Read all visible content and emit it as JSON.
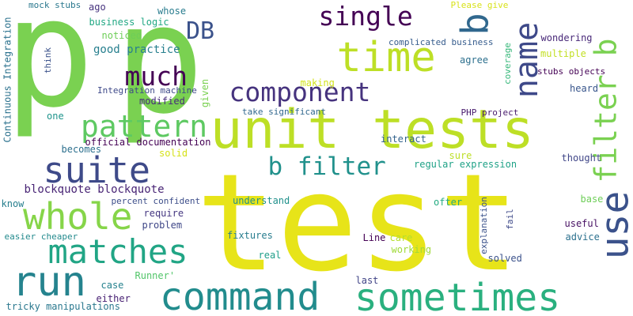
{
  "words": [
    {
      "id": "p-left",
      "text": "p",
      "color": "#7ad151"
    },
    {
      "id": "p-right",
      "text": "p",
      "color": "#7ad151"
    },
    {
      "id": "test",
      "text": "test",
      "color": "#e7e419"
    },
    {
      "id": "unit-tests",
      "text": "unit tests",
      "color": "#bddf26"
    },
    {
      "id": "command",
      "text": "command",
      "color": "#228c8d"
    },
    {
      "id": "sometimes",
      "text": "sometimes",
      "color": "#2ab07f"
    },
    {
      "id": "run",
      "text": "run",
      "color": "#25838e"
    },
    {
      "id": "matches",
      "text": "matches",
      "color": "#21a585"
    },
    {
      "id": "whole",
      "text": "whole",
      "color": "#86d549"
    },
    {
      "id": "suite",
      "text": "suite",
      "color": "#3e4a89"
    },
    {
      "id": "pattern",
      "text": "pattern",
      "color": "#5ec962"
    },
    {
      "id": "much",
      "text": "much",
      "color": "#440154"
    },
    {
      "id": "component",
      "text": "component",
      "color": "#46337e"
    },
    {
      "id": "time",
      "text": "time",
      "color": "#bddf26"
    },
    {
      "id": "single",
      "text": "single",
      "color": "#440154"
    },
    {
      "id": "db",
      "text": "DB",
      "color": "#3b528b"
    },
    {
      "id": "name",
      "text": "name",
      "color": "#3e4989"
    },
    {
      "id": "b",
      "text": "b",
      "color": "#31688e"
    },
    {
      "id": "filter-b",
      "text": "filter b",
      "color": "#7ad151"
    },
    {
      "id": "use",
      "text": "use",
      "color": "#3b528b"
    },
    {
      "id": "b-filter",
      "text": "b filter",
      "color": "#21918c"
    },
    {
      "id": "blockquote",
      "text": "blockquote blockquote",
      "color": "#482475"
    },
    {
      "id": "good-practice",
      "text": "good practice",
      "color": "#277f8e"
    },
    {
      "id": "noticed",
      "text": "noticed",
      "color": "#6ece58"
    },
    {
      "id": "business-logic",
      "text": "business logic",
      "color": "#22a884"
    },
    {
      "id": "ago",
      "text": "ago",
      "color": "#46327e"
    },
    {
      "id": "whose",
      "text": "whose",
      "color": "#287c8e"
    },
    {
      "id": "mock-stubs",
      "text": "mock stubs",
      "color": "#2a788e"
    },
    {
      "id": "please-give",
      "text": "Please give",
      "color": "#d8e219"
    },
    {
      "id": "complicated-business",
      "text": "complicated business",
      "color": "#365c8d"
    },
    {
      "id": "wondering",
      "text": "wondering",
      "color": "#482878"
    },
    {
      "id": "multiple",
      "text": "multiple",
      "color": "#c2df23"
    },
    {
      "id": "coverage",
      "text": "coverage",
      "color": "#35b779"
    },
    {
      "id": "agree",
      "text": "agree",
      "color": "#2d708e"
    },
    {
      "id": "stubs-objects",
      "text": "stubs objects",
      "color": "#440154"
    },
    {
      "id": "making",
      "text": "making",
      "color": "#d2e21b"
    },
    {
      "id": "heard",
      "text": "heard",
      "color": "#39568c"
    },
    {
      "id": "integration-machine",
      "text": "Integration machine",
      "color": "#3e4989"
    },
    {
      "id": "modified",
      "text": "modified",
      "color": "#472d7b"
    },
    {
      "id": "given",
      "text": "given",
      "color": "#7ad151"
    },
    {
      "id": "take-significant",
      "text": "take significant",
      "color": "#31688e"
    },
    {
      "id": "php-project",
      "text": "PHP project",
      "color": "#481b6d"
    },
    {
      "id": "one",
      "text": "one",
      "color": "#1f948c"
    },
    {
      "id": "think",
      "text": "think",
      "color": "#3b528b"
    },
    {
      "id": "continuous-integration",
      "text": "Continuous Integration",
      "color": "#2c728e"
    },
    {
      "id": "official-documentation",
      "text": "official documentation",
      "color": "#440154"
    },
    {
      "id": "becomes",
      "text": "becomes",
      "color": "#2d708e"
    },
    {
      "id": "solid",
      "text": "solid",
      "color": "#d5e21a"
    },
    {
      "id": "interact",
      "text": "interact",
      "color": "#33638d"
    },
    {
      "id": "sure",
      "text": "sure",
      "color": "#bddf26"
    },
    {
      "id": "thought",
      "text": "thought",
      "color": "#404688"
    },
    {
      "id": "regular-expression",
      "text": "regular expression",
      "color": "#1fa287"
    },
    {
      "id": "understand",
      "text": "understand",
      "color": "#21918c"
    },
    {
      "id": "percent-confident",
      "text": "percent confident",
      "color": "#3d4e8a"
    },
    {
      "id": "know",
      "text": "know",
      "color": "#277f8e"
    },
    {
      "id": "require",
      "text": "require",
      "color": "#453781"
    },
    {
      "id": "problem",
      "text": "problem",
      "color": "#3f4788"
    },
    {
      "id": "easier-cheaper",
      "text": "easier cheaper",
      "color": "#238a8d"
    },
    {
      "id": "ofter",
      "text": "ofter",
      "color": "#25ab82"
    },
    {
      "id": "base",
      "text": "base",
      "color": "#6ece58"
    },
    {
      "id": "fail",
      "text": "fail",
      "color": "#3e4989"
    },
    {
      "id": "explanation",
      "text": "explanation",
      "color": "#3b528b"
    },
    {
      "id": "useful",
      "text": "useful",
      "color": "#471063"
    },
    {
      "id": "advice",
      "text": "advice",
      "color": "#2c718e"
    },
    {
      "id": "line",
      "text": "Line",
      "color": "#440154"
    },
    {
      "id": "care",
      "text": "care",
      "color": "#b5de2b"
    },
    {
      "id": "working",
      "text": "working",
      "color": "#a0da39"
    },
    {
      "id": "fixtures",
      "text": "fixtures",
      "color": "#287d8e"
    },
    {
      "id": "real",
      "text": "real",
      "color": "#1f9e89"
    },
    {
      "id": "solved",
      "text": "solved",
      "color": "#3b528b"
    },
    {
      "id": "runner",
      "text": "Runner'",
      "color": "#52c569"
    },
    {
      "id": "case",
      "text": "case",
      "color": "#26828e"
    },
    {
      "id": "last",
      "text": "last",
      "color": "#414487"
    },
    {
      "id": "either",
      "text": "either",
      "color": "#482173"
    },
    {
      "id": "tricky-manipulations",
      "text": "tricky manipulations",
      "color": "#2a788e"
    }
  ]
}
